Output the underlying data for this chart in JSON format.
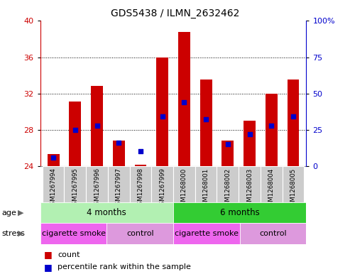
{
  "title": "GDS5438 / ILMN_2632462",
  "samples": [
    "GSM1267994",
    "GSM1267995",
    "GSM1267996",
    "GSM1267997",
    "GSM1267998",
    "GSM1267999",
    "GSM1268000",
    "GSM1268001",
    "GSM1268002",
    "GSM1268003",
    "GSM1268004",
    "GSM1268005"
  ],
  "counts": [
    25.3,
    31.1,
    32.8,
    26.8,
    24.15,
    36.0,
    38.8,
    33.5,
    26.8,
    29.0,
    32.0,
    33.5
  ],
  "percentile_ranks_pct": [
    6.0,
    25.0,
    28.0,
    16.0,
    10.0,
    34.0,
    44.0,
    32.0,
    15.0,
    22.0,
    28.0,
    34.0
  ],
  "y_min": 24,
  "y_max": 40,
  "y_ticks": [
    24,
    28,
    32,
    36,
    40
  ],
  "right_y_ticks": [
    0,
    25,
    50,
    75,
    100
  ],
  "right_y_tick_labels": [
    "0",
    "25",
    "50",
    "75",
    "100%"
  ],
  "age_groups": [
    {
      "label": "4 months",
      "start": 0,
      "end": 6,
      "color": "#b2f0b2"
    },
    {
      "label": "6 months",
      "start": 6,
      "end": 12,
      "color": "#33cc33"
    }
  ],
  "stress_groups": [
    {
      "label": "cigarette smoke",
      "start": 0,
      "end": 3,
      "color": "#ee66ee"
    },
    {
      "label": "control",
      "start": 3,
      "end": 6,
      "color": "#dd99dd"
    },
    {
      "label": "cigarette smoke",
      "start": 6,
      "end": 9,
      "color": "#ee66ee"
    },
    {
      "label": "control",
      "start": 9,
      "end": 12,
      "color": "#dd99dd"
    }
  ],
  "bar_color": "#cc0000",
  "dot_color": "#0000cc",
  "bar_bottom": 24,
  "bar_width": 0.55,
  "grid_color": "#000000",
  "tick_label_color_left": "#cc0000",
  "tick_label_color_right": "#0000cc",
  "bg_color": "#ffffff",
  "sample_bg_color": "#cccccc",
  "sample_sep_color": "#ffffff"
}
